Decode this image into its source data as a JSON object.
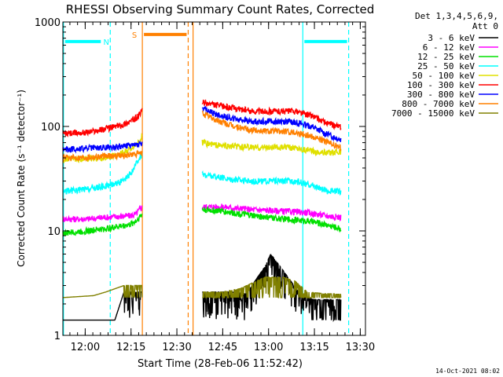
{
  "chart_data": {
    "type": "line",
    "title": "RHESSI Observing Summary Count Rates, Corrected",
    "xlabel": "Start Time (28-Feb-06 11:52:42)",
    "ylabel": "Corrected Count Rate (s⁻¹ detector⁻¹)",
    "x_unit": "minutes after 11:52:42",
    "xlim": [
      0,
      99
    ],
    "ylim": [
      1,
      1000
    ],
    "y_scale": "log",
    "x_ticks": [
      {
        "x": 7.3,
        "label": "12:00"
      },
      {
        "x": 22.3,
        "label": "12:15"
      },
      {
        "x": 37.3,
        "label": "12:30"
      },
      {
        "x": 52.3,
        "label": "12:45"
      },
      {
        "x": 67.3,
        "label": "13:00"
      },
      {
        "x": 82.3,
        "label": "13:15"
      },
      {
        "x": 97.3,
        "label": "13:30"
      }
    ],
    "y_ticks": [
      {
        "y": 1,
        "label": "1"
      },
      {
        "y": 10,
        "label": "10"
      },
      {
        "y": 100,
        "label": "100"
      },
      {
        "y": 1000,
        "label": "1000"
      }
    ],
    "legend_header": [
      "Det 1,3,4,5,6,9,",
      "Att 0"
    ],
    "legend_placement": "right",
    "footer_date": "14-Oct-2021 08:02",
    "gaps": [
      [
        26,
        45.5
      ]
    ],
    "series": [
      {
        "name": "3 - 6 keV",
        "color": "#000000",
        "points": [
          [
            0,
            1.4
          ],
          [
            10,
            1.4
          ],
          [
            17,
            1.4
          ],
          [
            20,
            2.6
          ],
          [
            24,
            2.6
          ],
          [
            26,
            2.6
          ],
          [
            45.5,
            2.6
          ],
          [
            55,
            2.6
          ],
          [
            60,
            2.5
          ],
          [
            66,
            4.5
          ],
          [
            68,
            6.0
          ],
          [
            72,
            4.2
          ],
          [
            78,
            2.4
          ],
          [
            82,
            2.2
          ],
          [
            88,
            2.2
          ],
          [
            91,
            2.2
          ]
        ]
      },
      {
        "name": "6 - 12 keV",
        "color": "#ff00ff",
        "points": [
          [
            0,
            13
          ],
          [
            8,
            13
          ],
          [
            14,
            13.5
          ],
          [
            22,
            14
          ],
          [
            24,
            14.5
          ],
          [
            25,
            16
          ],
          [
            26,
            17
          ],
          [
            45.5,
            17
          ],
          [
            52,
            17
          ],
          [
            62,
            16
          ],
          [
            72,
            15.5
          ],
          [
            80,
            15
          ],
          [
            86,
            14
          ],
          [
            91,
            13.5
          ]
        ]
      },
      {
        "name": "12 - 25 keV",
        "color": "#00e000",
        "points": [
          [
            0,
            9.5
          ],
          [
            8,
            10
          ],
          [
            14,
            10.5
          ],
          [
            22,
            11.5
          ],
          [
            24,
            12.5
          ],
          [
            25,
            13.5
          ],
          [
            26,
            14.5
          ],
          [
            45.5,
            16
          ],
          [
            52,
            15.5
          ],
          [
            62,
            14
          ],
          [
            72,
            13
          ],
          [
            80,
            12.5
          ],
          [
            86,
            11.5
          ],
          [
            91,
            10.5
          ]
        ]
      },
      {
        "name": "25 - 50 keV",
        "color": "#00ffff",
        "points": [
          [
            0,
            24
          ],
          [
            8,
            25
          ],
          [
            14,
            27
          ],
          [
            20,
            30
          ],
          [
            23,
            38
          ],
          [
            25,
            50
          ],
          [
            26,
            55
          ],
          [
            45.5,
            35
          ],
          [
            52,
            32
          ],
          [
            62,
            30
          ],
          [
            70,
            30
          ],
          [
            76,
            30
          ],
          [
            82,
            27
          ],
          [
            86,
            24
          ],
          [
            91,
            24
          ]
        ]
      },
      {
        "name": "50 - 100 keV",
        "color": "#e0e000",
        "points": [
          [
            0,
            48
          ],
          [
            8,
            49
          ],
          [
            14,
            50
          ],
          [
            20,
            56
          ],
          [
            23,
            64
          ],
          [
            25,
            72
          ],
          [
            26,
            80
          ],
          [
            45.5,
            70
          ],
          [
            52,
            65
          ],
          [
            62,
            63
          ],
          [
            70,
            63
          ],
          [
            76,
            63
          ],
          [
            82,
            58
          ],
          [
            86,
            56
          ],
          [
            91,
            57
          ]
        ]
      },
      {
        "name": "100 - 300 keV",
        "color": "#ff0000",
        "points": [
          [
            0,
            85
          ],
          [
            8,
            88
          ],
          [
            14,
            95
          ],
          [
            20,
            105
          ],
          [
            23,
            115
          ],
          [
            25,
            128
          ],
          [
            26,
            145
          ],
          [
            45.5,
            170
          ],
          [
            50,
            160
          ],
          [
            56,
            150
          ],
          [
            62,
            140
          ],
          [
            70,
            140
          ],
          [
            76,
            140
          ],
          [
            82,
            125
          ],
          [
            86,
            108
          ],
          [
            91,
            98
          ]
        ]
      },
      {
        "name": "300 - 800 keV",
        "color": "#0000ff",
        "points": [
          [
            0,
            60
          ],
          [
            8,
            62
          ],
          [
            14,
            63
          ],
          [
            20,
            65
          ],
          [
            23,
            66
          ],
          [
            25,
            68
          ],
          [
            26,
            68
          ],
          [
            45.5,
            150
          ],
          [
            50,
            130
          ],
          [
            56,
            118
          ],
          [
            62,
            112
          ],
          [
            70,
            112
          ],
          [
            76,
            110
          ],
          [
            82,
            98
          ],
          [
            86,
            85
          ],
          [
            91,
            75
          ]
        ]
      },
      {
        "name": "800 - 7000 keV",
        "color": "#ff8000",
        "points": [
          [
            0,
            50
          ],
          [
            8,
            51
          ],
          [
            14,
            52
          ],
          [
            20,
            53
          ],
          [
            23,
            54
          ],
          [
            25,
            55
          ],
          [
            26,
            55
          ],
          [
            45.5,
            135
          ],
          [
            50,
            115
          ],
          [
            56,
            100
          ],
          [
            62,
            92
          ],
          [
            70,
            90
          ],
          [
            76,
            88
          ],
          [
            82,
            80
          ],
          [
            86,
            72
          ],
          [
            91,
            62
          ]
        ]
      },
      {
        "name": "7000 - 15000 keV",
        "color": "#808000",
        "points": [
          [
            0,
            2.3
          ],
          [
            10,
            2.4
          ],
          [
            14,
            2.6
          ],
          [
            20,
            3.0
          ],
          [
            24,
            3.0
          ],
          [
            26,
            3.0
          ],
          [
            45.5,
            2.6
          ],
          [
            52,
            2.6
          ],
          [
            58,
            2.8
          ],
          [
            66,
            3.6
          ],
          [
            72,
            3.6
          ],
          [
            76,
            3.3
          ],
          [
            80,
            2.6
          ],
          [
            86,
            2.5
          ],
          [
            91,
            2.5
          ]
        ]
      }
    ],
    "vlines": [
      {
        "x": 0.2,
        "color": "#00ffff",
        "style": "solid"
      },
      {
        "x": 15.5,
        "color": "#00ffff",
        "style": "dashed"
      },
      {
        "x": 26.0,
        "color": "#ff8000",
        "style": "solid"
      },
      {
        "x": 41.0,
        "color": "#ff8000",
        "style": "dashed"
      },
      {
        "x": 42.6,
        "color": "#ff8000",
        "style": "solid"
      },
      {
        "x": 78.5,
        "color": "#00ffff",
        "style": "solid"
      },
      {
        "x": 93.5,
        "color": "#00ffff",
        "style": "dashed"
      }
    ],
    "bars": [
      {
        "x0": 0.2,
        "x1": 15.5,
        "y": 650,
        "color": "#00ffff",
        "label": "N"
      },
      {
        "x0": 26.0,
        "x1": 41.0,
        "y": 760,
        "color": "#ff8000",
        "label": "S"
      },
      {
        "x0": 78.5,
        "x1": 93.5,
        "y": 650,
        "color": "#00ffff",
        "label": ""
      }
    ]
  }
}
